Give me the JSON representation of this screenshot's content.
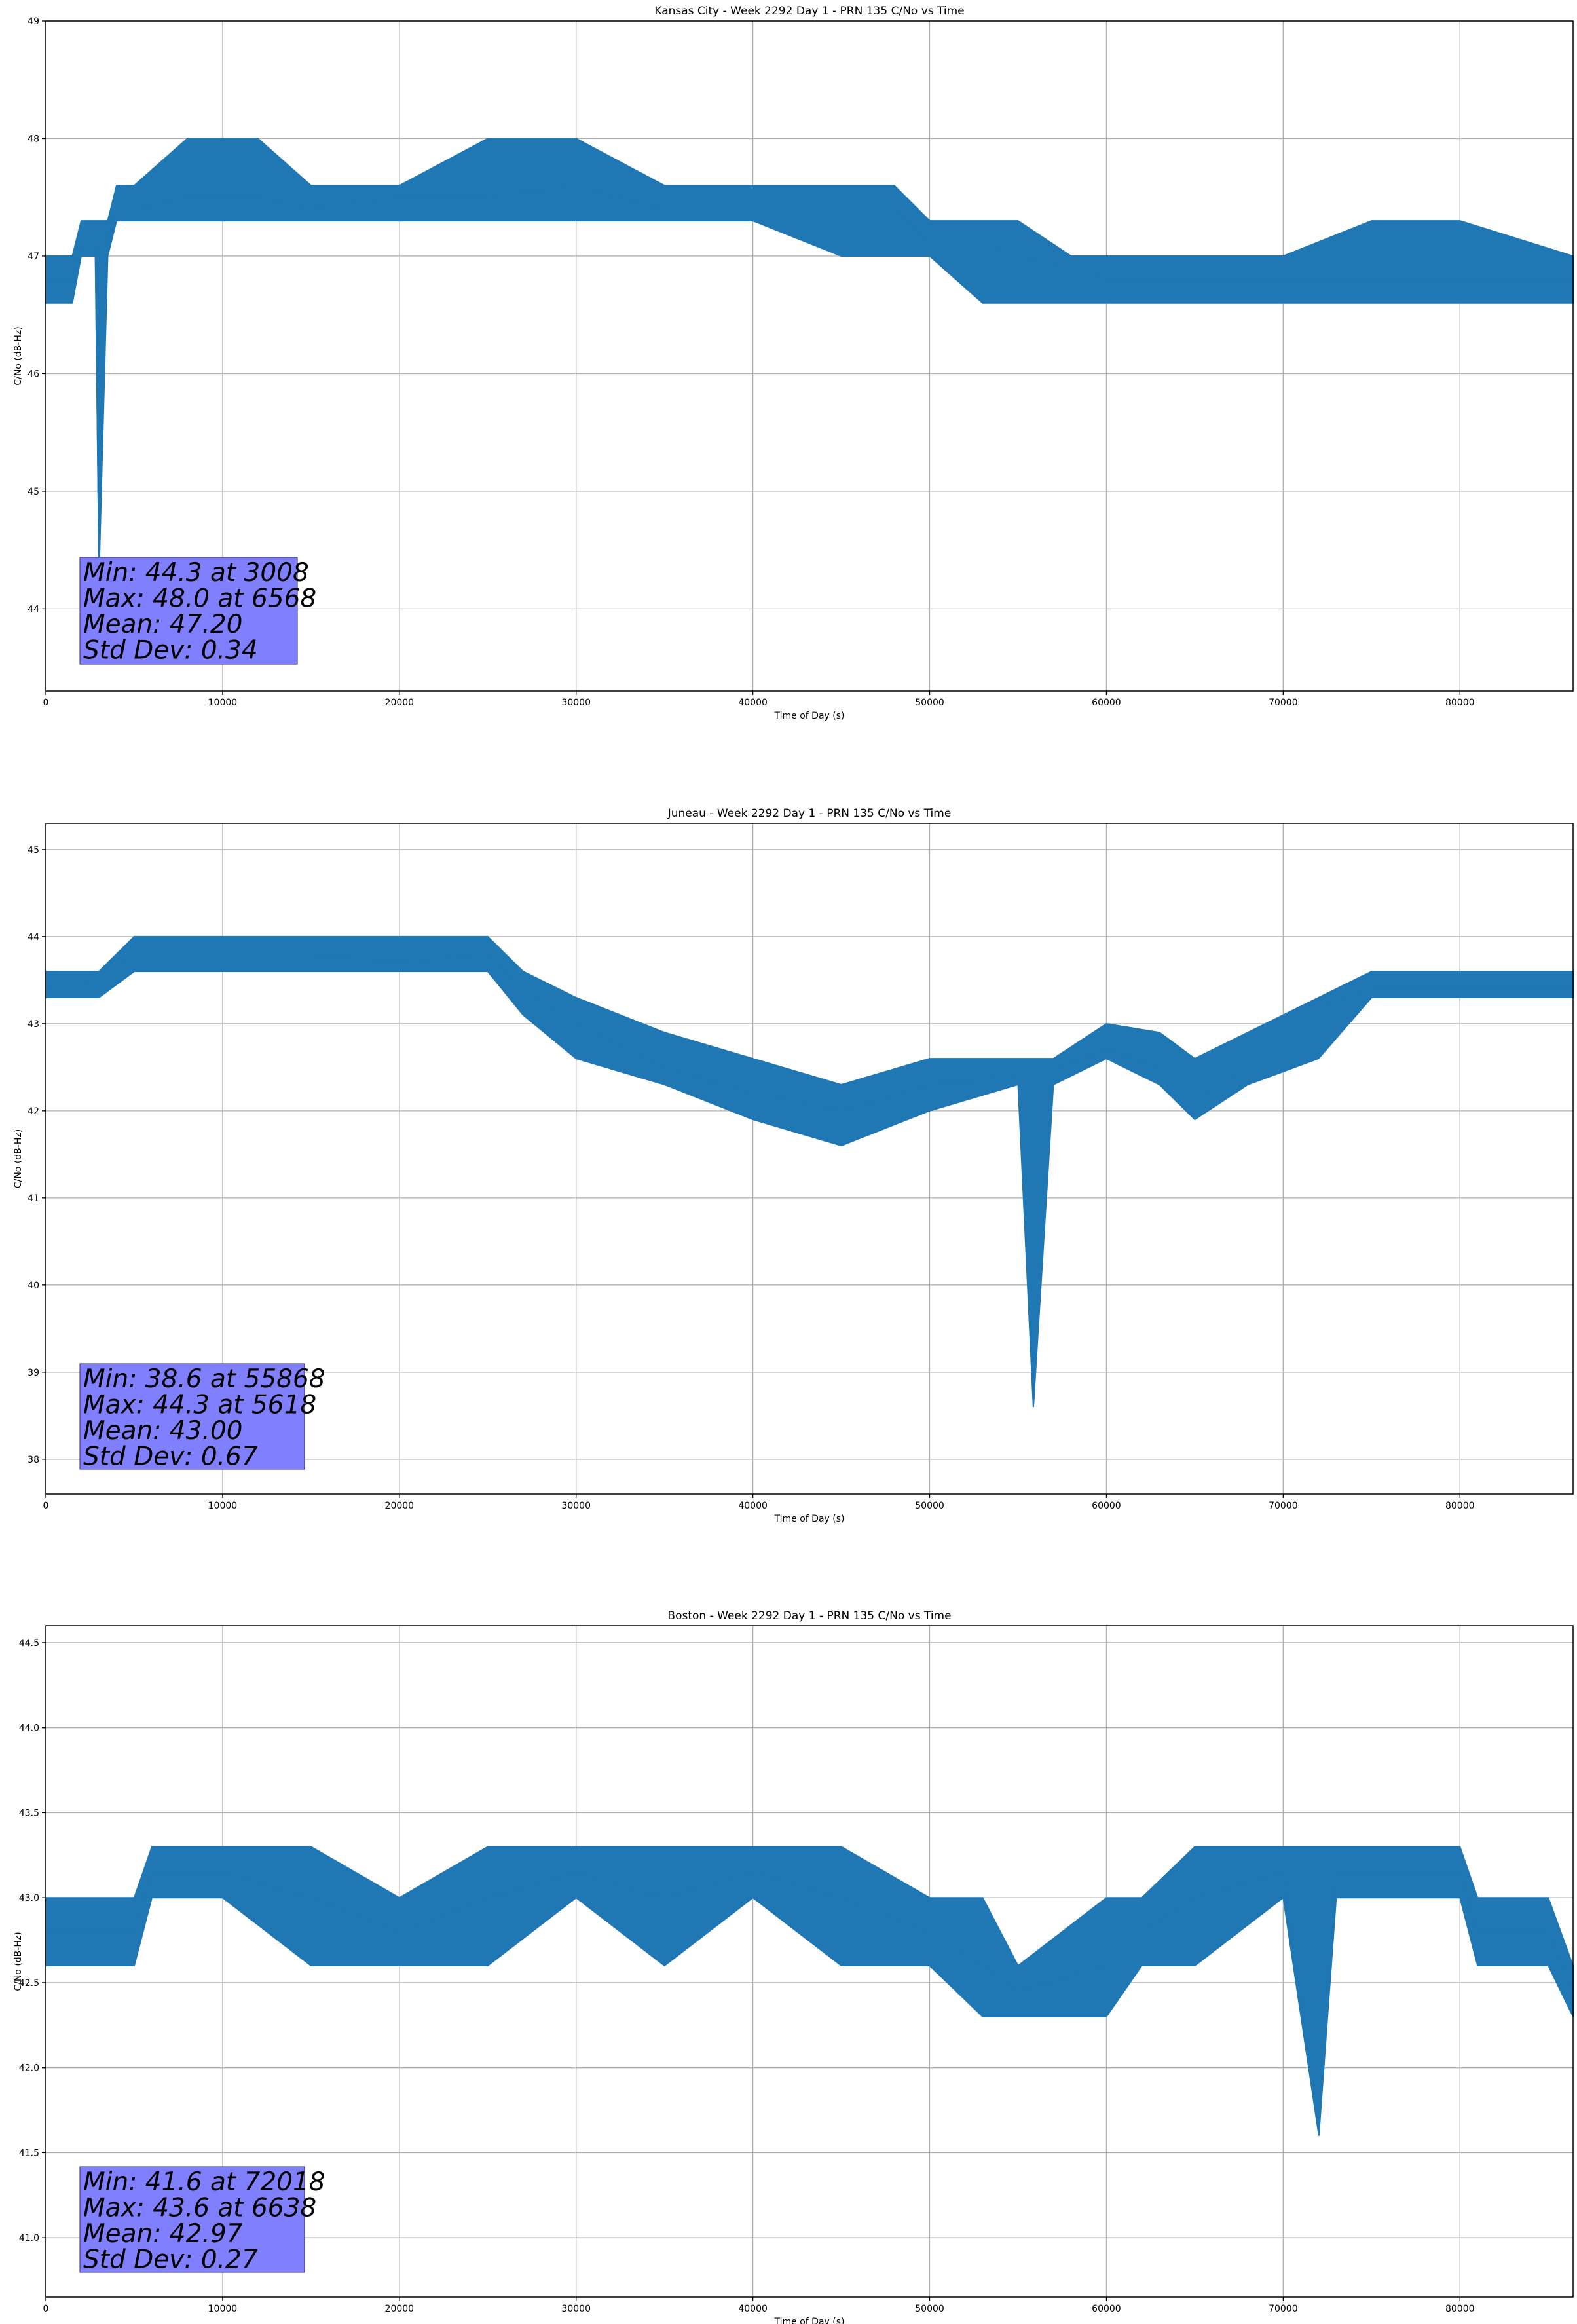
{
  "chart_data": [
    {
      "type": "line",
      "title": "Kansas City - Week 2292 Day 1 - PRN 135 C/No vs Time",
      "xlabel": "Time of Day (s)",
      "ylabel": "C/No (dB-Hz)",
      "xlim": [
        0,
        86400
      ],
      "ylim": [
        43.3,
        49.0
      ],
      "xticks": [
        0,
        10000,
        20000,
        30000,
        40000,
        50000,
        60000,
        70000,
        80000
      ],
      "xtick_labels": [
        "0",
        "10000",
        "20000",
        "30000",
        "40000",
        "50000",
        "60000",
        "70000",
        "80000"
      ],
      "yticks": [
        44,
        45,
        46,
        47,
        48,
        49
      ],
      "ytick_labels": [
        "44",
        "45",
        "46",
        "47",
        "48",
        "49"
      ],
      "grid": true,
      "series_color": "#1f77b4",
      "series": [
        {
          "x": [
            0,
            1500,
            2000,
            2800,
            3008,
            3500,
            4000,
            5000,
            8000,
            12000,
            15000,
            20000,
            25000,
            30000,
            35000,
            40000,
            45000,
            48000,
            50000,
            53000,
            55000,
            58000,
            60000,
            65000,
            70000,
            75000,
            80000,
            86400
          ],
          "y": [
            46.8,
            46.8,
            47.1,
            47.1,
            44.3,
            47.2,
            47.4,
            47.4,
            47.5,
            47.5,
            47.4,
            47.5,
            47.5,
            47.6,
            47.4,
            47.4,
            47.4,
            47.4,
            47.1,
            47.1,
            47.0,
            46.9,
            46.8,
            46.8,
            46.8,
            46.8,
            46.8,
            46.8
          ],
          "band_low": [
            46.6,
            46.6,
            47.0,
            47.0,
            44.3,
            47.0,
            47.3,
            47.3,
            47.3,
            47.3,
            47.3,
            47.3,
            47.3,
            47.3,
            47.3,
            47.3,
            47.0,
            47.0,
            47.0,
            46.6,
            46.6,
            46.6,
            46.6,
            46.6,
            46.6,
            46.6,
            46.6,
            46.6
          ],
          "band_high": [
            47.0,
            47.0,
            47.3,
            47.3,
            47.3,
            47.3,
            47.6,
            47.6,
            48.0,
            48.0,
            47.6,
            47.6,
            48.0,
            48.0,
            47.6,
            47.6,
            47.6,
            47.6,
            47.3,
            47.3,
            47.3,
            47.0,
            47.0,
            47.0,
            47.0,
            47.3,
            47.3,
            47.0
          ]
        }
      ],
      "annotation": [
        "Min: 44.3 at 3008",
        "Max: 48.0 at 6568",
        "Mean: 47.20",
        "Std Dev: 0.34"
      ]
    },
    {
      "type": "line",
      "title": "Juneau - Week 2292 Day 1 - PRN 135 C/No vs Time",
      "xlabel": "Time of Day (s)",
      "ylabel": "C/No (dB-Hz)",
      "xlim": [
        0,
        86400
      ],
      "ylim": [
        37.6,
        45.3
      ],
      "xticks": [
        0,
        10000,
        20000,
        30000,
        40000,
        50000,
        60000,
        70000,
        80000
      ],
      "xtick_labels": [
        "0",
        "10000",
        "20000",
        "30000",
        "40000",
        "50000",
        "60000",
        "70000",
        "80000"
      ],
      "yticks": [
        38,
        39,
        40,
        41,
        42,
        43,
        44,
        45
      ],
      "ytick_labels": [
        "38",
        "39",
        "40",
        "41",
        "42",
        "43",
        "44",
        "45"
      ],
      "grid": true,
      "series_color": "#1f77b4",
      "series": [
        {
          "x": [
            0,
            3000,
            5000,
            10000,
            15000,
            20000,
            25000,
            27000,
            30000,
            35000,
            40000,
            45000,
            50000,
            55000,
            55868,
            57000,
            60000,
            63000,
            65000,
            68000,
            72000,
            75000,
            80000,
            86400
          ],
          "y": [
            43.4,
            43.5,
            43.8,
            43.8,
            43.8,
            43.7,
            43.8,
            43.4,
            43.0,
            42.5,
            42.2,
            42.0,
            42.3,
            42.4,
            38.6,
            42.5,
            42.7,
            42.5,
            42.1,
            42.5,
            43.2,
            43.4,
            43.4,
            43.4
          ],
          "band_low": [
            43.3,
            43.3,
            43.6,
            43.6,
            43.6,
            43.6,
            43.6,
            43.1,
            42.6,
            42.3,
            41.9,
            41.6,
            42.0,
            42.3,
            38.6,
            42.3,
            42.6,
            42.3,
            41.9,
            42.3,
            42.6,
            43.3,
            43.3,
            43.3
          ],
          "band_high": [
            43.6,
            43.6,
            44.0,
            44.0,
            44.0,
            44.0,
            44.0,
            43.6,
            43.3,
            42.9,
            42.6,
            42.3,
            42.6,
            42.6,
            42.6,
            42.6,
            43.0,
            42.9,
            42.6,
            42.9,
            43.3,
            43.6,
            43.6,
            43.6
          ]
        }
      ],
      "annotation": [
        "Min: 38.6 at 55868",
        "Max: 44.3 at 5618",
        "Mean: 43.00",
        "Std Dev: 0.67"
      ]
    },
    {
      "type": "line",
      "title": "Boston - Week 2292 Day 1 - PRN 135 C/No vs Time",
      "xlabel": "Time of Day (s)",
      "ylabel": "C/No (dB-Hz)",
      "xlim": [
        0,
        86400
      ],
      "ylim": [
        40.65,
        44.6
      ],
      "xticks": [
        0,
        10000,
        20000,
        30000,
        40000,
        50000,
        60000,
        70000,
        80000
      ],
      "xtick_labels": [
        "0",
        "10000",
        "20000",
        "30000",
        "40000",
        "50000",
        "60000",
        "70000",
        "80000"
      ],
      "yticks": [
        41.0,
        41.5,
        42.0,
        42.5,
        43.0,
        43.5,
        44.0,
        44.5
      ],
      "ytick_labels": [
        "41.0",
        "41.5",
        "42.0",
        "42.5",
        "43.0",
        "43.5",
        "44.0",
        "44.5"
      ],
      "grid": true,
      "series_color": "#1f77b4",
      "series": [
        {
          "x": [
            0,
            5000,
            6000,
            10000,
            15000,
            20000,
            25000,
            30000,
            35000,
            40000,
            45000,
            50000,
            53000,
            55000,
            60000,
            62000,
            65000,
            70000,
            72018,
            73000,
            80000,
            81000,
            85000,
            86400
          ],
          "y": [
            42.8,
            42.8,
            43.15,
            43.15,
            43.0,
            42.8,
            43.0,
            43.15,
            43.0,
            43.15,
            43.0,
            42.8,
            42.6,
            42.45,
            42.6,
            42.8,
            43.0,
            43.15,
            41.6,
            43.15,
            43.15,
            42.8,
            42.8,
            42.45
          ],
          "band_low": [
            42.6,
            42.6,
            43.0,
            43.0,
            42.6,
            42.6,
            42.6,
            43.0,
            42.6,
            43.0,
            42.6,
            42.6,
            42.3,
            42.3,
            42.3,
            42.6,
            42.6,
            43.0,
            41.6,
            43.0,
            43.0,
            42.6,
            42.6,
            42.3
          ],
          "band_high": [
            43.0,
            43.0,
            43.3,
            43.3,
            43.3,
            43.0,
            43.3,
            43.3,
            43.3,
            43.3,
            43.3,
            43.0,
            43.0,
            42.6,
            43.0,
            43.0,
            43.3,
            43.3,
            43.3,
            43.3,
            43.3,
            43.0,
            43.0,
            42.6
          ]
        }
      ],
      "annotation": [
        "Min: 41.6 at 72018",
        "Max: 43.6 at 6638",
        "Mean: 42.97",
        "Std Dev: 0.27"
      ]
    }
  ]
}
